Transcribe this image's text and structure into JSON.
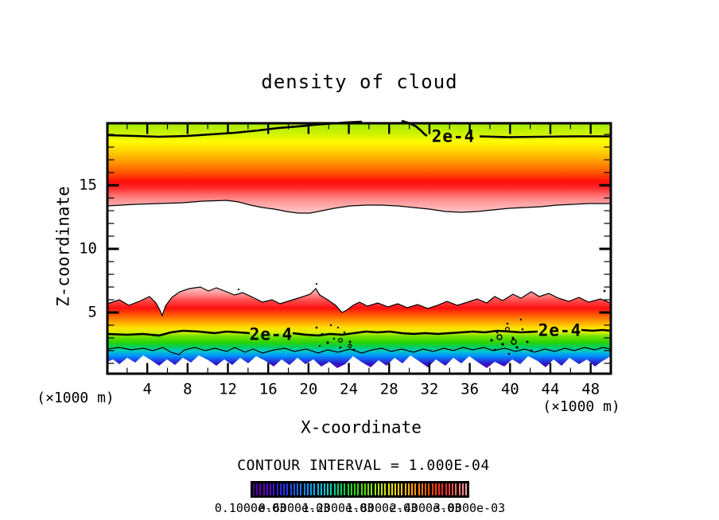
{
  "title": "density of cloud",
  "y_axis": {
    "label": "Z-coordinate",
    "ticks": [
      {
        "v": 15,
        "t": "15"
      },
      {
        "v": 10,
        "t": "10"
      },
      {
        "v": 5,
        "t": "5"
      }
    ]
  },
  "x_axis": {
    "label": "X-coordinate",
    "unit_left": "(×1000 m)",
    "unit_right": "(×1000 m)",
    "ticks": [
      {
        "v": 4,
        "t": "4"
      },
      {
        "v": 8,
        "t": "8"
      },
      {
        "v": 12,
        "t": "12"
      },
      {
        "v": 16,
        "t": "16"
      },
      {
        "v": 20,
        "t": "20"
      },
      {
        "v": 24,
        "t": "24"
      },
      {
        "v": 28,
        "t": "28"
      },
      {
        "v": 32,
        "t": "32"
      },
      {
        "v": 36,
        "t": "36"
      },
      {
        "v": 40,
        "t": "40"
      },
      {
        "v": 44,
        "t": "44"
      },
      {
        "v": 48,
        "t": "48"
      }
    ]
  },
  "contour_labels": {
    "upper": "2e-4",
    "lower_left": "2e-4",
    "lower_right": "2e-4"
  },
  "contour_interval_text": "CONTOUR INTERVAL = 1.000E-04",
  "colorbar": {
    "labels": [
      {
        "t": 0.0,
        "text": "0.1000e-03"
      },
      {
        "t": 0.2,
        "text": "0.6000e-03"
      },
      {
        "t": 0.4,
        "text": "1.2000e-03"
      },
      {
        "t": 0.6,
        "text": "1.8000e-03"
      },
      {
        "t": 0.8,
        "text": "2.4000e-03"
      },
      {
        "t": 1.0,
        "text": "3.0000e-03"
      }
    ],
    "stops": [
      [
        0.0,
        "#4b0096"
      ],
      [
        0.05,
        "#6a00c8"
      ],
      [
        0.1,
        "#3a14e6"
      ],
      [
        0.16,
        "#1e3cf0"
      ],
      [
        0.22,
        "#1e78ff"
      ],
      [
        0.29,
        "#00b4f0"
      ],
      [
        0.35,
        "#00d2c8"
      ],
      [
        0.42,
        "#00d24b"
      ],
      [
        0.49,
        "#30dc00"
      ],
      [
        0.56,
        "#8ce600"
      ],
      [
        0.63,
        "#e1eb00"
      ],
      [
        0.7,
        "#ffc800"
      ],
      [
        0.77,
        "#ff8c00"
      ],
      [
        0.84,
        "#ff4600"
      ],
      [
        0.9,
        "#ff1e1e"
      ],
      [
        0.95,
        "#ff6464"
      ],
      [
        1.0,
        "#ff9e9e"
      ]
    ]
  },
  "gradients": {
    "upper": [
      [
        0,
        "#a4ea00"
      ],
      [
        0.14,
        "#d8f400"
      ],
      [
        0.2,
        "#fdfd00"
      ],
      [
        0.3,
        "#ffd800"
      ],
      [
        0.4,
        "#ffa800"
      ],
      [
        0.5,
        "#ff7400"
      ],
      [
        0.58,
        "#ff4000"
      ],
      [
        0.65,
        "#ff0c0c"
      ],
      [
        0.72,
        "#ff2a2a"
      ],
      [
        0.8,
        "#ff6e6e"
      ],
      [
        0.88,
        "#ff9d9d"
      ],
      [
        1,
        "#ffc9c9"
      ]
    ],
    "lower": [
      [
        0,
        "#ffc8c8"
      ],
      [
        0.08,
        "#ff9696"
      ],
      [
        0.16,
        "#ff5050"
      ],
      [
        0.26,
        "#ff1010"
      ],
      [
        0.34,
        "#ff5500"
      ],
      [
        0.42,
        "#ff9900"
      ],
      [
        0.5,
        "#ffe000"
      ],
      [
        0.56,
        "#d8f000"
      ],
      [
        0.6,
        "#7ce200"
      ],
      [
        0.68,
        "#2cd400"
      ],
      [
        0.74,
        "#00cf60"
      ],
      [
        0.79,
        "#00c8c8"
      ],
      [
        0.85,
        "#0092ff"
      ],
      [
        0.9,
        "#1e4ae6"
      ],
      [
        0.95,
        "#2d12c4"
      ],
      [
        1,
        "#7a00b4"
      ]
    ]
  },
  "chart_data": {
    "type": "filled_contour",
    "title": "density of cloud",
    "xlabel": "X-coordinate",
    "ylabel": "Z-coordinate",
    "axis_units": "×1000 m",
    "xlim": [
      0,
      50
    ],
    "zlim": [
      0,
      20
    ],
    "x_major_ticks": [
      4,
      8,
      12,
      16,
      20,
      24,
      28,
      32,
      36,
      40,
      44,
      48
    ],
    "x_minor_tick_step": 2,
    "z_major_ticks": [
      5,
      10,
      15
    ],
    "z_minor_tick_step": 1,
    "contour_interval": 0.0001,
    "labeled_contour_value": 0.0002,
    "colorbar_range": [
      0.0001,
      0.003
    ],
    "colorbar_label_values": [
      0.0001,
      0.0006,
      0.0012,
      0.0018,
      0.0024,
      0.003
    ],
    "features": [
      {
        "name": "upper cloud layer",
        "x_extent": [
          0,
          50
        ],
        "z_extent": [
          13.4,
          20
        ],
        "peak_density_z": [
          14.5,
          15.8
        ],
        "contour_2e4_z": 18.9,
        "note": "2e-4 contour runs near z≈18.9 and bulges above the plot top between x≈25 and x≈33"
      },
      {
        "name": "lower cloud layer",
        "x_extent": [
          0,
          50
        ],
        "z_extent": [
          0.5,
          6.6
        ],
        "contour_2e4_z": 3.3,
        "secondary_contour_z": 2.2,
        "note": "ragged turbulent top edge near z≈5–6.5; speckled small-scale black contour structures near x≈21–25 and x≈38–42"
      }
    ]
  }
}
